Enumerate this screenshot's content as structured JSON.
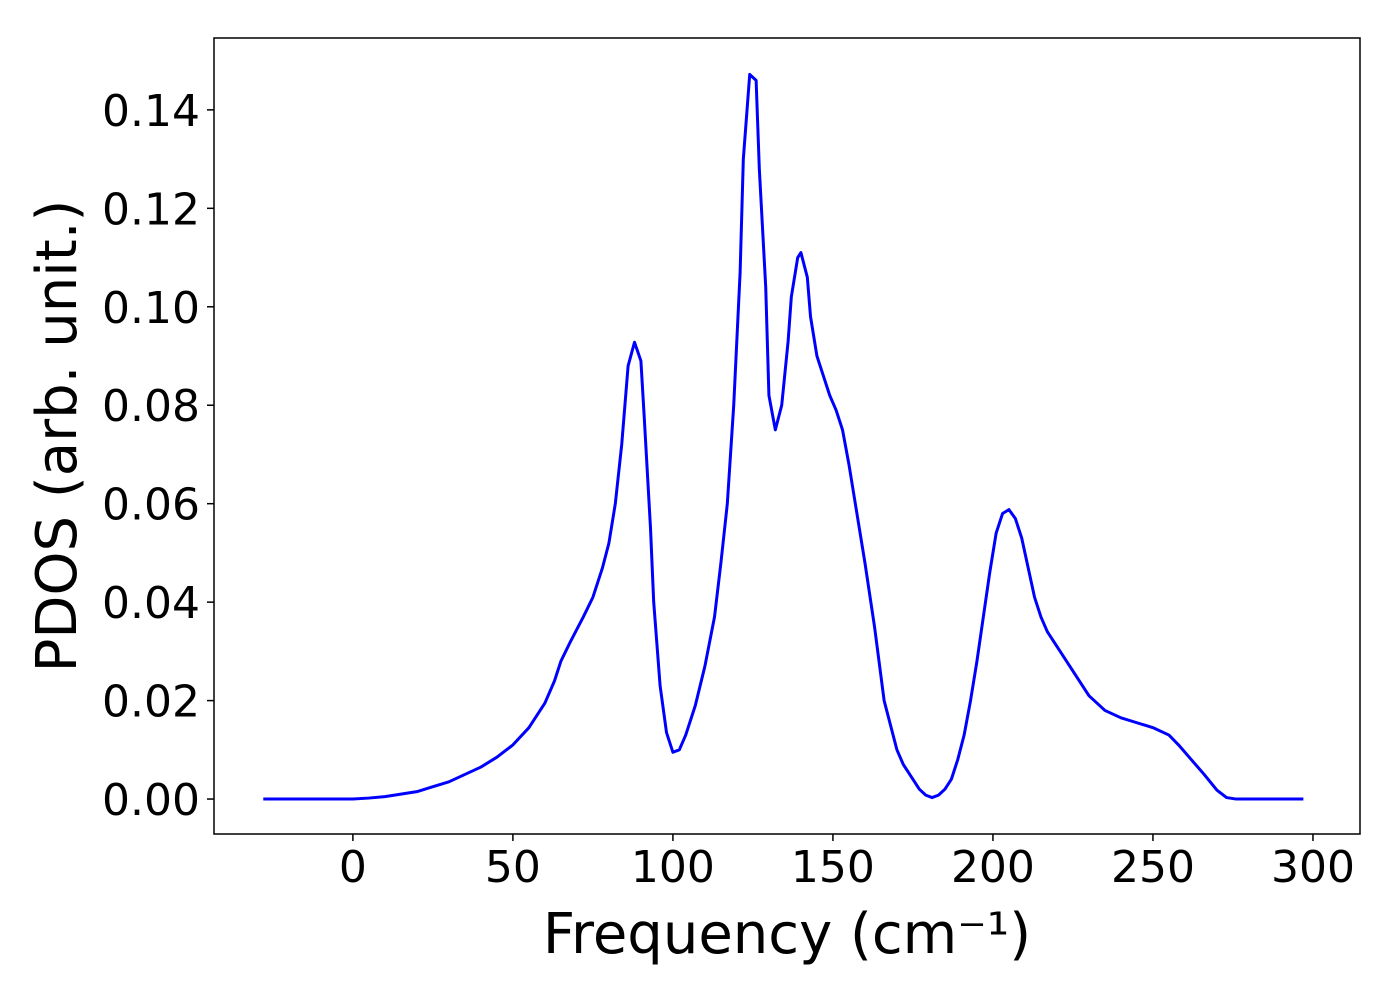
{
  "chart_data": {
    "type": "line",
    "xlabel": "Frequency (cm⁻¹)",
    "ylabel": "PDOS (arb. unit.)",
    "xlim": [
      -43.4,
      314.7
    ],
    "ylim": [
      -0.0071,
      0.1546
    ],
    "xticks": [
      0,
      50,
      100,
      150,
      200,
      250,
      300
    ],
    "yticks": [
      {
        "value": 0,
        "label": "0.00"
      },
      {
        "value": 0.02,
        "label": "0.02"
      },
      {
        "value": 0.04,
        "label": "0.04"
      },
      {
        "value": 0.06,
        "label": "0.06"
      },
      {
        "value": 0.08,
        "label": "0.08"
      },
      {
        "value": 0.1,
        "label": "0.10"
      },
      {
        "value": 0.12,
        "label": "0.12"
      },
      {
        "value": 0.14,
        "label": "0.14"
      }
    ],
    "grid": false,
    "series": [
      {
        "color": "#0000ff",
        "x": [
          -28,
          0,
          5,
          10,
          15,
          20,
          25,
          30,
          35,
          40,
          45,
          50,
          55,
          60,
          63,
          65,
          68,
          72,
          75,
          78,
          80,
          82,
          84,
          86,
          88,
          90,
          91,
          93,
          94,
          96,
          98,
          100,
          102,
          104,
          107,
          110,
          113,
          115,
          117,
          119,
          121,
          122,
          124,
          126,
          127,
          129,
          130,
          132,
          134,
          136,
          137,
          139,
          140,
          142,
          143,
          145,
          147,
          149,
          151,
          153,
          155,
          157,
          160,
          163,
          166,
          168,
          170,
          172,
          175,
          177,
          179,
          181,
          183,
          185,
          187,
          189,
          191,
          193,
          195,
          197,
          199,
          201,
          203,
          205,
          207,
          209,
          211,
          213,
          215,
          217,
          220,
          225,
          230,
          235,
          240,
          245,
          250,
          255,
          258,
          262,
          266,
          270,
          273,
          276,
          297
        ],
        "values": [
          0,
          0,
          0.0002,
          0.0005,
          0.001,
          0.0015,
          0.0025,
          0.0035,
          0.005,
          0.0065,
          0.0085,
          0.011,
          0.0145,
          0.0195,
          0.024,
          0.028,
          0.032,
          0.037,
          0.041,
          0.047,
          0.052,
          0.06,
          0.072,
          0.088,
          0.0928,
          0.089,
          0.078,
          0.055,
          0.04,
          0.023,
          0.0135,
          0.0095,
          0.01,
          0.013,
          0.019,
          0.027,
          0.037,
          0.048,
          0.06,
          0.08,
          0.107,
          0.13,
          0.1472,
          0.146,
          0.128,
          0.104,
          0.082,
          0.075,
          0.08,
          0.093,
          0.102,
          0.11,
          0.111,
          0.106,
          0.098,
          0.09,
          0.086,
          0.082,
          0.079,
          0.075,
          0.068,
          0.06,
          0.048,
          0.035,
          0.02,
          0.015,
          0.01,
          0.007,
          0.004,
          0.002,
          0.0008,
          0.0003,
          0.0008,
          0.002,
          0.004,
          0.008,
          0.013,
          0.02,
          0.028,
          0.037,
          0.046,
          0.054,
          0.058,
          0.0588,
          0.057,
          0.053,
          0.047,
          0.041,
          0.037,
          0.034,
          0.031,
          0.026,
          0.021,
          0.018,
          0.0165,
          0.0155,
          0.0145,
          0.013,
          0.011,
          0.008,
          0.005,
          0.0018,
          0.0003,
          0,
          0
        ]
      }
    ]
  }
}
